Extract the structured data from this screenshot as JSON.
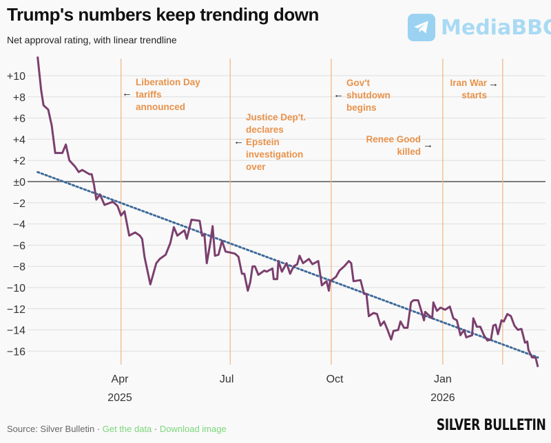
{
  "title": "Trump's numbers keep trending down",
  "subtitle": "Net approval rating, with linear trendline",
  "watermark": "MediaBBG",
  "brand": "SILVER BULLETIN",
  "footer": {
    "source": "Source: Silver Bulletin",
    "sep": " · ",
    "get_data": "Get the data",
    "download": "Download image"
  },
  "colors": {
    "line": "#7b3f6e",
    "trend": "#3d6a9a",
    "event": "#f0b98a",
    "annotation": "#e8924a",
    "zero": "#333333",
    "grid": "#dddddd",
    "link": "#7bd67b"
  },
  "chart_data": {
    "type": "line",
    "title": "Trump's numbers keep trending down",
    "subtitle": "Net approval rating, with linear trendline",
    "xlabel": "",
    "ylabel": "",
    "ylim": [
      -17.5,
      11.8
    ],
    "yticks": [
      10,
      8,
      6,
      4,
      2,
      0,
      -2,
      -4,
      -6,
      -8,
      -10,
      -12,
      -14,
      -16
    ],
    "ytick_labels": [
      "+10",
      "+8",
      "+6",
      "+4",
      "+2",
      "±0",
      "−2",
      "−4",
      "−6",
      "−8",
      "−10",
      "−12",
      "−14",
      "−16"
    ],
    "xticks": [
      {
        "date": "2025-04-01",
        "label": "Apr",
        "year": "2025"
      },
      {
        "date": "2025-07-01",
        "label": "Jul",
        "year": ""
      },
      {
        "date": "2025-10-01",
        "label": "Oct",
        "year": ""
      },
      {
        "date": "2026-01-01",
        "label": "Jan",
        "year": "2026"
      }
    ],
    "grid": true,
    "series": [
      {
        "points": [
          [
            "2025-01-21",
            11.8
          ],
          [
            "2025-01-24",
            8.6
          ],
          [
            "2025-01-26",
            7.2
          ],
          [
            "2025-01-30",
            6.8
          ],
          [
            "2025-02-02",
            5.3
          ],
          [
            "2025-02-05",
            2.7
          ],
          [
            "2025-02-11",
            2.7
          ],
          [
            "2025-02-14",
            3.5
          ],
          [
            "2025-02-17",
            2.0
          ],
          [
            "2025-02-22",
            1.4
          ],
          [
            "2025-02-25",
            0.9
          ],
          [
            "2025-02-28",
            1.1
          ],
          [
            "2025-03-06",
            0.7
          ],
          [
            "2025-03-08",
            0.7
          ],
          [
            "2025-03-10",
            -0.3
          ],
          [
            "2025-03-12",
            -1.7
          ],
          [
            "2025-03-15",
            -1.2
          ],
          [
            "2025-03-19",
            -2.2
          ],
          [
            "2025-03-26",
            -1.9
          ],
          [
            "2025-03-30",
            -2.3
          ],
          [
            "2025-04-02",
            -3.2
          ],
          [
            "2025-04-05",
            -2.8
          ],
          [
            "2025-04-09",
            -5.1
          ],
          [
            "2025-04-14",
            -4.8
          ],
          [
            "2025-04-18",
            -5.1
          ],
          [
            "2025-04-20",
            -5.4
          ],
          [
            "2025-04-22",
            -7.1
          ],
          [
            "2025-04-27",
            -9.7
          ],
          [
            "2025-05-02",
            -7.7
          ],
          [
            "2025-05-05",
            -7.3
          ],
          [
            "2025-05-10",
            -6.9
          ],
          [
            "2025-05-14",
            -5.8
          ],
          [
            "2025-05-17",
            -4.3
          ],
          [
            "2025-05-20",
            -5.1
          ],
          [
            "2025-05-26",
            -4.6
          ],
          [
            "2025-05-28",
            -5.4
          ],
          [
            "2025-06-01",
            -3.6
          ],
          [
            "2025-06-08",
            -3.7
          ],
          [
            "2025-06-10",
            -5.1
          ],
          [
            "2025-06-12",
            -5.0
          ],
          [
            "2025-06-14",
            -7.7
          ],
          [
            "2025-06-17",
            -5.8
          ],
          [
            "2025-06-19",
            -4.2
          ],
          [
            "2025-06-21",
            -7.0
          ],
          [
            "2025-06-24",
            -6.9
          ],
          [
            "2025-06-27",
            -5.6
          ],
          [
            "2025-06-30",
            -6.6
          ],
          [
            "2025-07-08",
            -6.8
          ],
          [
            "2025-07-11",
            -7.1
          ],
          [
            "2025-07-14",
            -8.7
          ],
          [
            "2025-07-16",
            -8.7
          ],
          [
            "2025-07-19",
            -10.3
          ],
          [
            "2025-07-21",
            -9.5
          ],
          [
            "2025-07-23",
            -8.0
          ],
          [
            "2025-07-25",
            -8.0
          ],
          [
            "2025-07-28",
            -8.8
          ],
          [
            "2025-08-02",
            -8.4
          ],
          [
            "2025-08-04",
            -8.5
          ],
          [
            "2025-08-09",
            -8.2
          ],
          [
            "2025-08-10",
            -9.2
          ],
          [
            "2025-08-13",
            -9.2
          ],
          [
            "2025-08-14",
            -7.5
          ],
          [
            "2025-08-17",
            -8.5
          ],
          [
            "2025-08-21",
            -7.7
          ],
          [
            "2025-08-24",
            -8.7
          ],
          [
            "2025-08-27",
            -8.0
          ],
          [
            "2025-08-30",
            -7.8
          ],
          [
            "2025-09-01",
            -7.0
          ],
          [
            "2025-09-04",
            -7.7
          ],
          [
            "2025-09-09",
            -7.3
          ],
          [
            "2025-09-12",
            -7.8
          ],
          [
            "2025-09-17",
            -7.5
          ],
          [
            "2025-09-20",
            -9.8
          ],
          [
            "2025-09-24",
            -9.4
          ],
          [
            "2025-09-26",
            -10.3
          ],
          [
            "2025-09-27",
            -9.4
          ],
          [
            "2025-10-02",
            -9.0
          ],
          [
            "2025-10-05",
            -8.4
          ],
          [
            "2025-10-09",
            -8.0
          ],
          [
            "2025-10-13",
            -7.5
          ],
          [
            "2025-10-15",
            -7.7
          ],
          [
            "2025-10-17",
            -9.4
          ],
          [
            "2025-10-23",
            -9.3
          ],
          [
            "2025-10-26",
            -10.6
          ],
          [
            "2025-10-28",
            -10.6
          ],
          [
            "2025-10-30",
            -12.7
          ],
          [
            "2025-11-03",
            -12.4
          ],
          [
            "2025-11-06",
            -12.5
          ],
          [
            "2025-11-09",
            -13.6
          ],
          [
            "2025-11-12",
            -13.2
          ],
          [
            "2025-11-15",
            -14.0
          ],
          [
            "2025-11-18",
            -14.9
          ],
          [
            "2025-11-20",
            -14.1
          ],
          [
            "2025-11-24",
            -14.0
          ],
          [
            "2025-11-26",
            -13.2
          ],
          [
            "2025-11-29",
            -13.8
          ],
          [
            "2025-12-02",
            -13.8
          ],
          [
            "2025-12-05",
            -11.4
          ],
          [
            "2025-12-07",
            -11.2
          ],
          [
            "2025-12-11",
            -11.2
          ],
          [
            "2025-12-14",
            -12.3
          ],
          [
            "2025-12-16",
            -13.1
          ],
          [
            "2025-12-17",
            -12.3
          ],
          [
            "2025-12-23",
            -12.9
          ],
          [
            "2025-12-24",
            -11.4
          ],
          [
            "2025-12-27",
            -12.2
          ],
          [
            "2025-12-30",
            -11.9
          ],
          [
            "2026-01-03",
            -12.1
          ],
          [
            "2026-01-07",
            -11.8
          ],
          [
            "2026-01-10",
            -12.9
          ],
          [
            "2026-01-13",
            -13.1
          ],
          [
            "2026-01-16",
            -14.5
          ],
          [
            "2026-01-19",
            -14.0
          ],
          [
            "2026-01-21",
            -14.7
          ],
          [
            "2026-01-26",
            -14.5
          ],
          [
            "2026-01-27",
            -12.9
          ],
          [
            "2026-01-30",
            -13.7
          ],
          [
            "2026-02-02",
            -13.7
          ],
          [
            "2026-02-05",
            -14.5
          ],
          [
            "2026-02-08",
            -15.0
          ],
          [
            "2026-02-11",
            -14.9
          ],
          [
            "2026-02-13",
            -13.6
          ],
          [
            "2026-02-15",
            -13.5
          ],
          [
            "2026-02-17",
            -14.4
          ],
          [
            "2026-02-20",
            -13.1
          ],
          [
            "2026-02-22",
            -13.2
          ],
          [
            "2026-02-25",
            -12.5
          ],
          [
            "2026-02-28",
            -12.7
          ],
          [
            "2026-03-03",
            -13.6
          ],
          [
            "2026-03-06",
            -14.0
          ],
          [
            "2026-03-09",
            -13.9
          ],
          [
            "2026-03-12",
            -15.2
          ],
          [
            "2026-03-14",
            -15.1
          ],
          [
            "2026-03-15",
            -15.9
          ],
          [
            "2026-03-18",
            -16.6
          ],
          [
            "2026-03-21",
            -16.6
          ],
          [
            "2026-03-23",
            -17.5
          ]
        ]
      }
    ],
    "trendline": {
      "style": "dotted",
      "start": [
        "2025-01-21",
        0.9
      ],
      "end": [
        "2026-03-23",
        -16.6
      ]
    },
    "events": [
      {
        "date": "2025-04-02",
        "label": "Liberation Day tariffs announced",
        "lines": [
          "Liberation Day",
          "tariffs",
          "announced"
        ],
        "arrow": "←"
      },
      {
        "date": "2025-07-04",
        "label": "Justice Dep't. declares Epstein investigation over",
        "lines": [
          "Justice Dep't.",
          "declares",
          "Epstein",
          "investigation",
          "over"
        ],
        "arrow": "←"
      },
      {
        "date": "2025-09-28",
        "label": "Gov't shutdown begins",
        "lines": [
          "Gov't",
          "shutdown",
          "begins"
        ],
        "arrow": "←"
      },
      {
        "date": "2026-01-01",
        "label": "Renee Good killed",
        "lines": [
          "Renee Good",
          "killed"
        ],
        "arrow": "→"
      },
      {
        "date": "2026-02-21",
        "label": "Iran War starts",
        "lines": [
          "Iran War",
          "starts"
        ],
        "arrow": "→"
      }
    ]
  }
}
